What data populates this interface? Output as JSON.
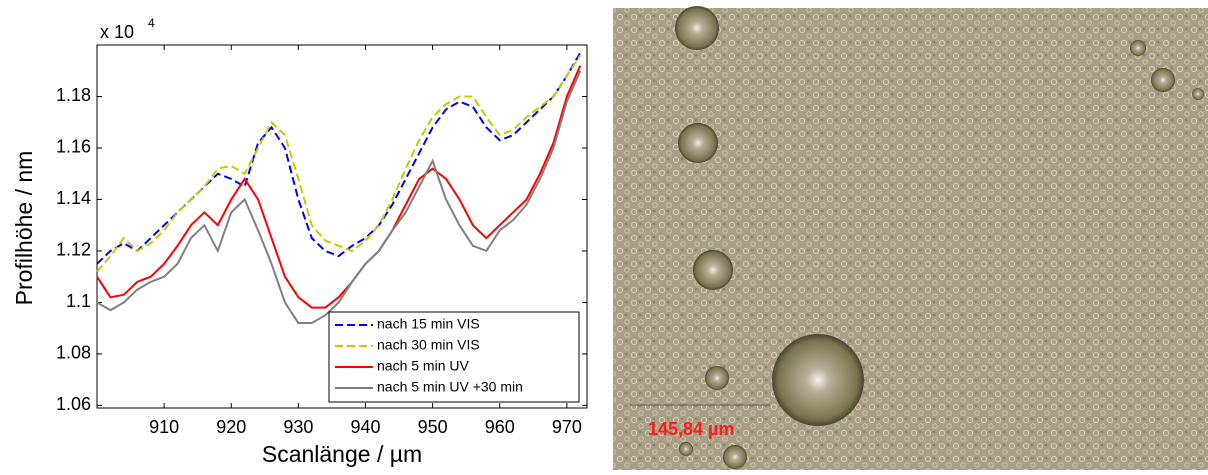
{
  "chart_data": {
    "type": "line",
    "x_label": "Scanlänge / µm",
    "y_label": "Profilhöhe / nm",
    "y_scale_base": "x 10",
    "y_scale_exponent": "4",
    "x": [
      900,
      902,
      904,
      906,
      908,
      910,
      912,
      914,
      916,
      918,
      920,
      922,
      924,
      926,
      928,
      930,
      932,
      934,
      936,
      938,
      940,
      942,
      944,
      946,
      948,
      950,
      952,
      954,
      956,
      958,
      960,
      962,
      964,
      966,
      968,
      970,
      972
    ],
    "series": [
      {
        "name": "nach 15 min VIS",
        "color": "#0000ff",
        "style": "dashed",
        "values": [
          1.115,
          1.12,
          1.123,
          1.12,
          1.125,
          1.13,
          1.135,
          1.14,
          1.145,
          1.15,
          1.148,
          1.145,
          1.162,
          1.168,
          1.16,
          1.14,
          1.125,
          1.12,
          1.118,
          1.122,
          1.125,
          1.13,
          1.138,
          1.148,
          1.158,
          1.168,
          1.175,
          1.178,
          1.176,
          1.168,
          1.163,
          1.165,
          1.17,
          1.175,
          1.18,
          1.188,
          1.197
        ]
      },
      {
        "name": "nach 30 min VIS",
        "color": "#c8c800",
        "style": "dashed",
        "values": [
          1.112,
          1.118,
          1.125,
          1.12,
          1.123,
          1.128,
          1.135,
          1.14,
          1.145,
          1.152,
          1.153,
          1.15,
          1.16,
          1.17,
          1.165,
          1.148,
          1.13,
          1.124,
          1.122,
          1.12,
          1.124,
          1.13,
          1.14,
          1.152,
          1.163,
          1.172,
          1.177,
          1.18,
          1.18,
          1.172,
          1.165,
          1.167,
          1.172,
          1.176,
          1.18,
          1.188,
          1.196
        ]
      },
      {
        "name": "nach 5 min UV",
        "color": "#ff0000",
        "style": "solid",
        "values": [
          1.11,
          1.102,
          1.103,
          1.108,
          1.11,
          1.115,
          1.122,
          1.13,
          1.135,
          1.13,
          1.14,
          1.148,
          1.14,
          1.125,
          1.11,
          1.102,
          1.098,
          1.098,
          1.102,
          1.108,
          1.115,
          1.12,
          1.128,
          1.138,
          1.148,
          1.152,
          1.148,
          1.14,
          1.13,
          1.125,
          1.13,
          1.135,
          1.14,
          1.15,
          1.162,
          1.18,
          1.192
        ]
      },
      {
        "name": "nach 5 min UV +30 min",
        "color": "#808080",
        "style": "solid",
        "values": [
          1.1,
          1.097,
          1.1,
          1.105,
          1.108,
          1.11,
          1.115,
          1.125,
          1.13,
          1.12,
          1.135,
          1.14,
          1.128,
          1.115,
          1.1,
          1.092,
          1.092,
          1.095,
          1.1,
          1.108,
          1.115,
          1.12,
          1.128,
          1.135,
          1.145,
          1.155,
          1.14,
          1.13,
          1.122,
          1.12,
          1.128,
          1.132,
          1.138,
          1.148,
          1.16,
          1.178,
          1.19
        ]
      }
    ],
    "xlim": [
      900,
      973
    ],
    "xticks": [
      910,
      920,
      930,
      940,
      950,
      960,
      970
    ],
    "ylim": [
      1.059,
      1.2
    ],
    "yticks": [
      1.06,
      1.08,
      1.1,
      1.12,
      1.14,
      1.16,
      1.18
    ],
    "grid": false,
    "legend": "lower-right"
  },
  "image": {
    "scale_label": "145,84 µm"
  }
}
